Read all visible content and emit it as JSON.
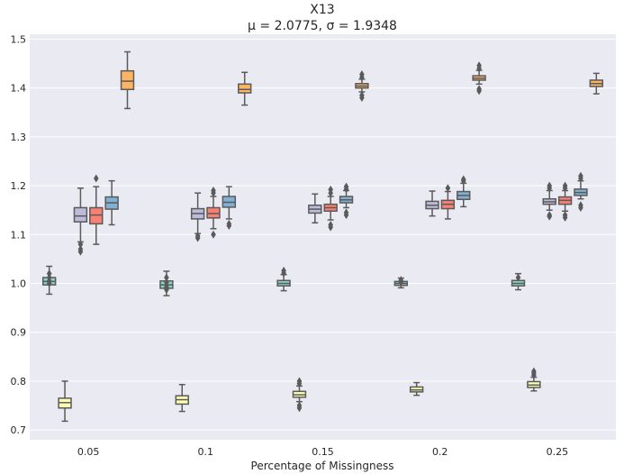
{
  "chart_data": {
    "type": "boxplot",
    "title": "X13",
    "subtitle": "μ = 2.0775, σ = 1.9348",
    "xlabel": "Percentage of Missingness",
    "ylabel": "",
    "ylim": [
      0.68,
      1.51
    ],
    "yticks": [
      0.7,
      0.8,
      0.9,
      1.0,
      1.1,
      1.2,
      1.3,
      1.4,
      1.5
    ],
    "categories": [
      "0.05",
      "0.1",
      "0.15",
      "0.2",
      "0.25"
    ],
    "grid": true,
    "legend": "none",
    "colors": [
      "#8dd3c7",
      "#ffffb3",
      "#bebada",
      "#fb8072",
      "#80b1d3",
      "#fdb462"
    ],
    "series": [
      {
        "boxes": [
          {
            "whislo": 0.978,
            "q1": 0.997,
            "med": 1.004,
            "q3": 1.012,
            "whishi": 1.035,
            "fliers": [
              1.0,
              1.005,
              1.012,
              1.02
            ]
          },
          {
            "whislo": 0.975,
            "q1": 0.99,
            "med": 0.997,
            "q3": 1.005,
            "whishi": 1.025,
            "fliers": [
              0.987,
              0.993,
              1.002,
              1.012
            ]
          },
          {
            "whislo": 0.985,
            "q1": 0.995,
            "med": 1.0,
            "q3": 1.006,
            "whishi": 1.018,
            "fliers": [
              1.021,
              1.026
            ]
          },
          {
            "whislo": 0.991,
            "q1": 0.996,
            "med": 1.0,
            "q3": 1.004,
            "whishi": 1.011,
            "fliers": [
              1.003,
              1.007
            ]
          },
          {
            "whislo": 0.987,
            "q1": 0.995,
            "med": 1.0,
            "q3": 1.006,
            "whishi": 1.02,
            "fliers": [
              1.012
            ]
          }
        ]
      },
      {
        "boxes": [
          {
            "whislo": 0.718,
            "q1": 0.745,
            "med": 0.756,
            "q3": 0.765,
            "whishi": 0.8,
            "fliers": []
          },
          {
            "whislo": 0.738,
            "q1": 0.753,
            "med": 0.762,
            "q3": 0.77,
            "whishi": 0.793,
            "fliers": []
          },
          {
            "whislo": 0.758,
            "q1": 0.767,
            "med": 0.772,
            "q3": 0.779,
            "whishi": 0.79,
            "fliers": [
              0.745,
              0.75,
              0.795,
              0.8
            ]
          },
          {
            "whislo": 0.771,
            "q1": 0.778,
            "med": 0.782,
            "q3": 0.788,
            "whishi": 0.797,
            "fliers": []
          },
          {
            "whislo": 0.78,
            "q1": 0.787,
            "med": 0.792,
            "q3": 0.799,
            "whishi": 0.808,
            "fliers": [
              0.812,
              0.816,
              0.82
            ]
          }
        ]
      },
      {
        "boxes": [
          {
            "whislo": 1.085,
            "q1": 1.126,
            "med": 1.138,
            "q3": 1.155,
            "whishi": 1.195,
            "fliers": [
              1.065,
              1.07,
              1.08
            ]
          },
          {
            "whislo": 1.102,
            "q1": 1.132,
            "med": 1.143,
            "q3": 1.153,
            "whishi": 1.185,
            "fliers": [
              1.093,
              1.097
            ]
          },
          {
            "whislo": 1.124,
            "q1": 1.144,
            "med": 1.152,
            "q3": 1.16,
            "whishi": 1.183,
            "fliers": []
          },
          {
            "whislo": 1.138,
            "q1": 1.153,
            "med": 1.16,
            "q3": 1.168,
            "whishi": 1.189,
            "fliers": []
          },
          {
            "whislo": 1.15,
            "q1": 1.162,
            "med": 1.167,
            "q3": 1.173,
            "whishi": 1.19,
            "fliers": [
              1.137,
              1.14,
              1.195,
              1.2
            ]
          }
        ]
      },
      {
        "boxes": [
          {
            "whislo": 1.08,
            "q1": 1.122,
            "med": 1.14,
            "q3": 1.155,
            "whishi": 1.198,
            "fliers": [
              1.215
            ]
          },
          {
            "whislo": 1.112,
            "q1": 1.134,
            "med": 1.143,
            "q3": 1.155,
            "whishi": 1.178,
            "fliers": [
              1.1,
              1.185,
              1.19
            ]
          },
          {
            "whislo": 1.13,
            "q1": 1.148,
            "med": 1.155,
            "q3": 1.162,
            "whishi": 1.178,
            "fliers": [
              1.115,
              1.12,
              1.185,
              1.192
            ]
          },
          {
            "whislo": 1.132,
            "q1": 1.153,
            "med": 1.162,
            "q3": 1.17,
            "whishi": 1.188,
            "fliers": [
              1.195
            ]
          },
          {
            "whislo": 1.148,
            "q1": 1.162,
            "med": 1.17,
            "q3": 1.177,
            "whishi": 1.19,
            "fliers": [
              1.135,
              1.14,
              1.195,
              1.2
            ]
          }
        ]
      },
      {
        "boxes": [
          {
            "whislo": 1.12,
            "q1": 1.152,
            "med": 1.165,
            "q3": 1.177,
            "whishi": 1.21,
            "fliers": []
          },
          {
            "whislo": 1.132,
            "q1": 1.156,
            "med": 1.166,
            "q3": 1.178,
            "whishi": 1.198,
            "fliers": [
              1.118,
              1.122
            ]
          },
          {
            "whislo": 1.155,
            "q1": 1.165,
            "med": 1.171,
            "q3": 1.178,
            "whishi": 1.19,
            "fliers": [
              1.14,
              1.145,
              1.193,
              1.198
            ]
          },
          {
            "whislo": 1.157,
            "q1": 1.172,
            "med": 1.18,
            "q3": 1.188,
            "whishi": 1.205,
            "fliers": [
              1.21,
              1.213
            ]
          },
          {
            "whislo": 1.173,
            "q1": 1.18,
            "med": 1.186,
            "q3": 1.193,
            "whishi": 1.21,
            "fliers": [
              1.155,
              1.16,
              1.215,
              1.22
            ]
          }
        ]
      },
      {
        "boxes": [
          {
            "whislo": 1.358,
            "q1": 1.397,
            "med": 1.414,
            "q3": 1.435,
            "whishi": 1.474,
            "fliers": []
          },
          {
            "whislo": 1.365,
            "q1": 1.39,
            "med": 1.397,
            "q3": 1.408,
            "whishi": 1.432,
            "fliers": []
          },
          {
            "whislo": 1.392,
            "q1": 1.4,
            "med": 1.404,
            "q3": 1.409,
            "whishi": 1.418,
            "fliers": [
              1.38,
              1.385,
              1.422,
              1.428
            ]
          },
          {
            "whislo": 1.408,
            "q1": 1.416,
            "med": 1.42,
            "q3": 1.425,
            "whishi": 1.436,
            "fliers": [
              1.394,
              1.398,
              1.44,
              1.446
            ]
          },
          {
            "whislo": 1.388,
            "q1": 1.403,
            "med": 1.409,
            "q3": 1.416,
            "whishi": 1.43,
            "fliers": []
          }
        ]
      }
    ]
  }
}
